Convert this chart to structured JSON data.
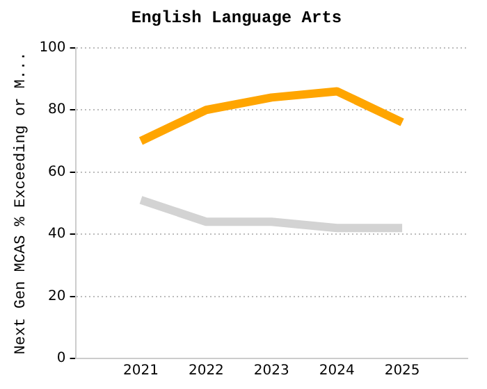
{
  "chart_data": {
    "type": "line",
    "title": "English Language Arts",
    "ylabel": "Next Gen MCAS % Exceeding or M...",
    "categories": [
      "2021",
      "2022",
      "2023",
      "2024",
      "2025"
    ],
    "series": [
      {
        "color": "#ffa500",
        "values": [
          70,
          80,
          84,
          86,
          76
        ]
      },
      {
        "color": "#d3d3d3",
        "values": [
          51,
          44,
          44,
          42,
          42
        ]
      }
    ],
    "ylim": [
      0,
      100
    ],
    "yticks": [
      0,
      20,
      40,
      60,
      80,
      100
    ],
    "grid": "y",
    "legend": false,
    "marker": "none",
    "line_style": "solid"
  }
}
